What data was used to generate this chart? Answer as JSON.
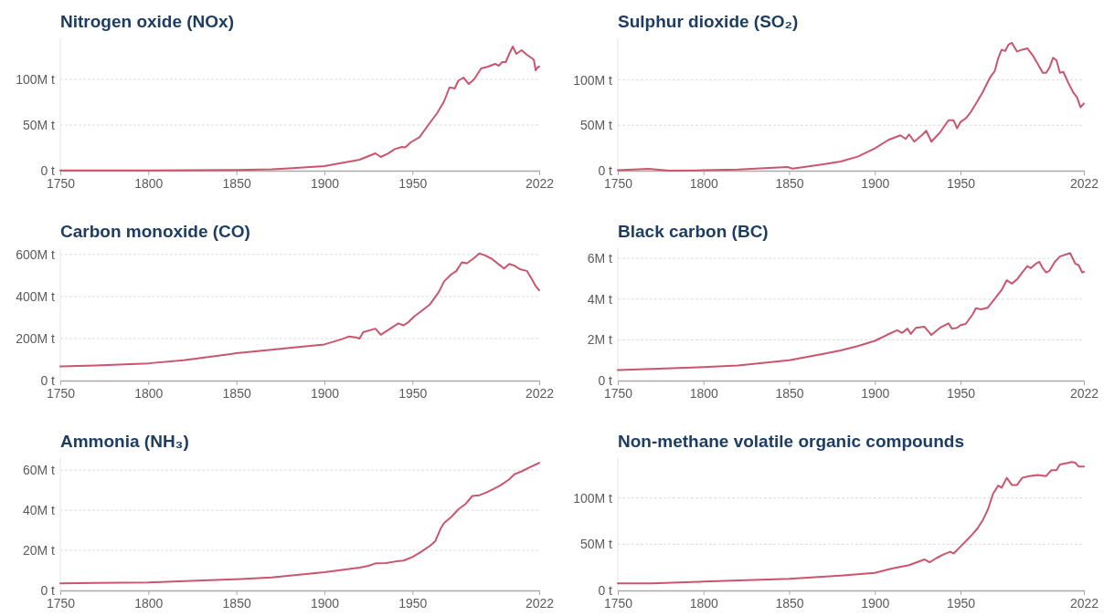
{
  "chart_data": [
    {
      "type": "line",
      "title": "Nitrogen oxide (NOx)",
      "xlim": [
        1750,
        2022
      ],
      "xticks": [
        1750,
        1800,
        1850,
        1900,
        1950,
        2022
      ],
      "ylim": [
        0,
        145
      ],
      "yticks": [
        {
          "value": 0,
          "label": "0 t"
        },
        {
          "value": 50,
          "label": "50M t"
        },
        {
          "value": 100,
          "label": "100M t"
        }
      ],
      "grid": "y",
      "x": [
        1750,
        1800,
        1850,
        1870,
        1880,
        1900,
        1910,
        1920,
        1929,
        1932,
        1936,
        1940,
        1944,
        1946,
        1949,
        1954,
        1959,
        1964,
        1968,
        1971,
        1972,
        1974,
        1976,
        1979,
        1982,
        1985,
        1989,
        1993,
        1997,
        1999,
        2001,
        2003,
        2005,
        2007,
        2009,
        2012,
        2015,
        2018,
        2019,
        2020,
        2021,
        2022
      ],
      "series": [
        {
          "color": "#c9566e",
          "values": [
            0.2,
            0.3,
            0.8,
            1.5,
            2.5,
            5,
            8.6,
            12,
            19,
            15,
            18.7,
            23.6,
            26,
            25.5,
            31,
            36.7,
            50,
            63,
            76,
            91,
            91,
            90,
            98.5,
            102,
            95,
            100,
            112,
            114,
            117,
            115,
            119,
            119,
            128,
            136,
            128,
            132,
            127,
            123,
            121,
            110,
            113,
            114
          ]
        }
      ]
    },
    {
      "type": "line",
      "title": "Sulphur dioxide (SO₂)",
      "xlim": [
        1750,
        2022
      ],
      "xticks": [
        1750,
        1800,
        1850,
        1900,
        1950,
        2022
      ],
      "ylim": [
        0,
        146
      ],
      "yticks": [
        {
          "value": 0,
          "label": "0 t"
        },
        {
          "value": 50,
          "label": "50M t"
        },
        {
          "value": 100,
          "label": "100M t"
        }
      ],
      "grid": "y",
      "x": [
        1750,
        1768,
        1780,
        1800,
        1820,
        1849,
        1852,
        1870,
        1880,
        1890,
        1900,
        1908,
        1915,
        1918,
        1920,
        1923,
        1928,
        1930,
        1933,
        1938,
        1943,
        1946,
        1948,
        1950,
        1953,
        1956,
        1960,
        1963,
        1967,
        1970,
        1972,
        1974,
        1976,
        1978,
        1980,
        1983,
        1986,
        1989,
        1992,
        1995,
        1998,
        2000,
        2002,
        2004,
        2006,
        2008,
        2010,
        2013,
        2016,
        2018,
        2020,
        2022
      ],
      "series": [
        {
          "color": "#c9566e",
          "values": [
            0.4,
            2,
            0,
            0.4,
            1.2,
            4,
            2.3,
            7,
            10,
            15.5,
            24.5,
            34,
            39,
            35,
            40,
            32,
            40,
            44,
            32,
            42,
            55.6,
            55.6,
            46.7,
            53.7,
            57.6,
            64.6,
            77,
            86.8,
            102,
            110,
            124,
            133.5,
            132,
            139,
            141,
            131.5,
            133.5,
            135,
            127.6,
            118,
            108,
            108,
            114,
            124.5,
            121.8,
            108,
            109,
            96.5,
            85.6,
            81,
            70,
            74
          ]
        }
      ]
    },
    {
      "type": "line",
      "title": "Carbon monoxide (CO)",
      "xlim": [
        1750,
        2022
      ],
      "xticks": [
        1750,
        1800,
        1850,
        1900,
        1950,
        2022
      ],
      "ylim": [
        0,
        630
      ],
      "yticks": [
        {
          "value": 0,
          "label": "0 t"
        },
        {
          "value": 200,
          "label": "200M t"
        },
        {
          "value": 400,
          "label": "400M t"
        },
        {
          "value": 600,
          "label": "600M t"
        }
      ],
      "grid": "y",
      "x": [
        1750,
        1770,
        1800,
        1820,
        1850,
        1870,
        1880,
        1900,
        1910,
        1914,
        1918,
        1920,
        1922,
        1929,
        1932,
        1938,
        1942,
        1945,
        1948,
        1951,
        1955,
        1960,
        1965,
        1968,
        1972,
        1975,
        1978,
        1981,
        1985,
        1988,
        1991,
        1995,
        2000,
        2002,
        2005,
        2008,
        2011,
        2015,
        2018,
        2020,
        2022
      ],
      "series": [
        {
          "color": "#c9566e",
          "values": [
            67,
            72,
            82,
            97,
            130,
            147,
            155,
            172,
            197,
            210,
            205,
            200,
            230,
            247,
            218,
            250,
            272,
            263,
            280,
            305,
            330,
            363,
            422,
            472,
            505,
            522,
            563,
            558,
            583,
            605,
            597,
            580,
            547,
            533,
            555,
            547,
            530,
            522,
            480,
            450,
            430
          ]
        }
      ]
    },
    {
      "type": "line",
      "title": "Black carbon (BC)",
      "xlim": [
        1750,
        2022
      ],
      "xticks": [
        1750,
        1800,
        1850,
        1900,
        1950,
        2022
      ],
      "ylim": [
        0,
        6.5
      ],
      "yticks": [
        {
          "value": 0,
          "label": "0 t"
        },
        {
          "value": 2,
          "label": "2M t"
        },
        {
          "value": 4,
          "label": "4M t"
        },
        {
          "value": 6,
          "label": "6M t"
        }
      ],
      "grid": "y",
      "x": [
        1750,
        1770,
        1800,
        1820,
        1850,
        1870,
        1880,
        1890,
        1900,
        1907,
        1913,
        1916,
        1919,
        1921,
        1924,
        1929,
        1933,
        1938,
        1943,
        1945,
        1948,
        1950,
        1953,
        1957,
        1959,
        1962,
        1966,
        1970,
        1974,
        1977,
        1980,
        1983,
        1986,
        1989,
        1991,
        1994,
        1996,
        1998,
        2000,
        2002,
        2005,
        2008,
        2012,
        2014,
        2017,
        2019,
        2021,
        2022
      ],
      "series": [
        {
          "color": "#c9566e",
          "values": [
            0.52,
            0.57,
            0.66,
            0.74,
            1.0,
            1.31,
            1.48,
            1.69,
            1.95,
            2.24,
            2.47,
            2.34,
            2.55,
            2.29,
            2.59,
            2.64,
            2.24,
            2.59,
            2.81,
            2.55,
            2.59,
            2.72,
            2.78,
            3.24,
            3.55,
            3.5,
            3.59,
            4.02,
            4.45,
            4.93,
            4.76,
            4.97,
            5.31,
            5.62,
            5.52,
            5.74,
            5.83,
            5.52,
            5.31,
            5.4,
            5.83,
            6.09,
            6.21,
            6.26,
            5.74,
            5.66,
            5.31,
            5.34
          ]
        }
      ]
    },
    {
      "type": "line",
      "title": "Ammonia (NH₃)",
      "xlim": [
        1750,
        2022
      ],
      "xticks": [
        1750,
        1800,
        1850,
        1900,
        1950,
        2022
      ],
      "ylim": [
        0,
        66
      ],
      "yticks": [
        {
          "value": 0,
          "label": "0 t"
        },
        {
          "value": 20,
          "label": "20M t"
        },
        {
          "value": 40,
          "label": "40M t"
        },
        {
          "value": 60,
          "label": "60M t"
        }
      ],
      "grid": "y",
      "x": [
        1750,
        1770,
        1800,
        1850,
        1870,
        1900,
        1920,
        1925,
        1929,
        1935,
        1940,
        1945,
        1950,
        1955,
        1960,
        1963,
        1966,
        1968,
        1972,
        1976,
        1980,
        1984,
        1988,
        1992,
        1996,
        2000,
        2005,
        2008,
        2012,
        2016,
        2022
      ],
      "series": [
        {
          "color": "#c9566e",
          "values": [
            3.5,
            3.7,
            4.0,
            5.6,
            6.5,
            9.1,
            11.4,
            12.3,
            13.5,
            13.7,
            14.4,
            14.9,
            16.7,
            19.3,
            22.3,
            24.6,
            30.8,
            33.7,
            36.6,
            40.4,
            43,
            47.1,
            47.5,
            48.9,
            50.6,
            52.4,
            55.4,
            58,
            59.4,
            61.2,
            63.6
          ]
        }
      ]
    },
    {
      "type": "line",
      "title": "Non-methane volatile organic compounds",
      "xlim": [
        1750,
        2022
      ],
      "xticks": [
        1750,
        1800,
        1850,
        1900,
        1950,
        2022
      ],
      "ylim": [
        0,
        143
      ],
      "yticks": [
        {
          "value": 0,
          "label": "0 t"
        },
        {
          "value": 50,
          "label": "50M t"
        },
        {
          "value": 100,
          "label": "100M t"
        }
      ],
      "grid": "y",
      "x": [
        1750,
        1770,
        1800,
        1850,
        1880,
        1900,
        1910,
        1920,
        1929,
        1932,
        1936,
        1940,
        1944,
        1946,
        1950,
        1954,
        1957,
        1960,
        1963,
        1966,
        1969,
        1972,
        1974,
        1977,
        1980,
        1983,
        1986,
        1990,
        1995,
        2000,
        2003,
        2006,
        2008,
        2012,
        2015,
        2017,
        2019,
        2022
      ],
      "series": [
        {
          "color": "#c9566e",
          "values": [
            7.6,
            7.6,
            9.5,
            12.5,
            16,
            19,
            23.6,
            27.4,
            33.5,
            30.4,
            35,
            38.8,
            41.8,
            40,
            47.5,
            55,
            60.8,
            67.3,
            76,
            87.5,
            104.6,
            113.3,
            111,
            121.7,
            114,
            114,
            121.7,
            123.6,
            124.7,
            123.6,
            130,
            130,
            136,
            137.6,
            138.8,
            138,
            133.8,
            133.8
          ]
        }
      ]
    }
  ]
}
